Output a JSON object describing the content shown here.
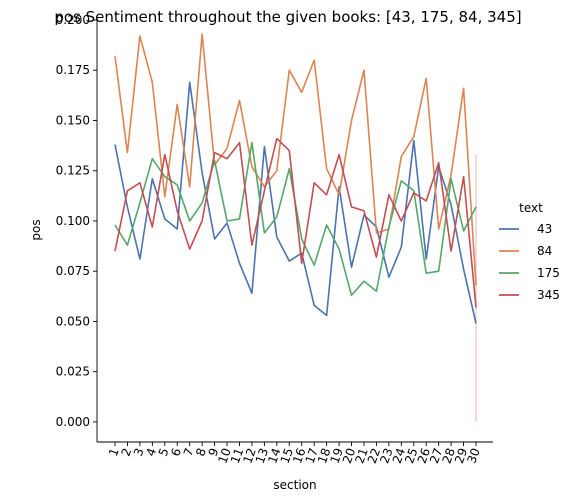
{
  "chart_data": {
    "type": "line",
    "title": "pos Sentiment throughout the given books: [43, 175, 84, 345]",
    "xlabel": "section",
    "ylabel": "pos",
    "x": [
      "1",
      "2",
      "3",
      "4",
      "5",
      "6",
      "7",
      "8",
      "9",
      "10",
      "11",
      "12",
      "13",
      "14",
      "15",
      "16",
      "17",
      "18",
      "19",
      "20",
      "21",
      "22",
      "23",
      "24",
      "25",
      "26",
      "27",
      "28",
      "29",
      "30"
    ],
    "ylim": [
      -0.01,
      0.2
    ],
    "yticks": [
      "0.000",
      "0.025",
      "0.050",
      "0.075",
      "0.100",
      "0.125",
      "0.150",
      "0.175",
      "0.200"
    ],
    "legend_title": "text",
    "legend_position": "right",
    "grid": false,
    "series": [
      {
        "name": "43",
        "color": "#4c72b0",
        "values": [
          0.138,
          0.107,
          0.081,
          0.121,
          0.101,
          0.096,
          0.169,
          0.124,
          0.091,
          0.099,
          0.079,
          0.064,
          0.137,
          0.092,
          0.08,
          0.084,
          0.058,
          0.053,
          0.117,
          0.077,
          0.103,
          0.097,
          0.072,
          0.087,
          0.14,
          0.081,
          0.127,
          0.108,
          0.076,
          0.049
        ]
      },
      {
        "name": "84",
        "color": "#dd8452",
        "values": [
          0.182,
          0.134,
          0.192,
          0.169,
          0.112,
          0.158,
          0.117,
          0.193,
          0.128,
          0.136,
          0.16,
          0.127,
          0.117,
          0.125,
          0.175,
          0.164,
          0.18,
          0.126,
          0.113,
          0.15,
          0.175,
          0.094,
          0.096,
          0.132,
          0.142,
          0.171,
          0.096,
          0.123,
          0.166,
          0.068
        ]
      },
      {
        "name": "175",
        "color": "#55a868",
        "values": [
          0.098,
          0.088,
          0.109,
          0.131,
          0.122,
          0.118,
          0.1,
          0.109,
          0.13,
          0.1,
          0.101,
          0.139,
          0.094,
          0.102,
          0.126,
          0.091,
          0.078,
          0.098,
          0.086,
          0.063,
          0.07,
          0.065,
          0.097,
          0.12,
          0.115,
          0.074,
          0.075,
          0.121,
          0.095,
          0.107
        ]
      },
      {
        "name": "345",
        "color": "#c44e52",
        "values": [
          0.085,
          0.115,
          0.119,
          0.097,
          0.133,
          0.105,
          0.086,
          0.1,
          0.134,
          0.131,
          0.139,
          0.088,
          0.115,
          0.141,
          0.135,
          0.079,
          0.119,
          0.113,
          0.133,
          0.107,
          0.105,
          0.082,
          0.113,
          0.1,
          0.114,
          0.11,
          0.129,
          0.085,
          0.122,
          0.057
        ]
      }
    ]
  }
}
